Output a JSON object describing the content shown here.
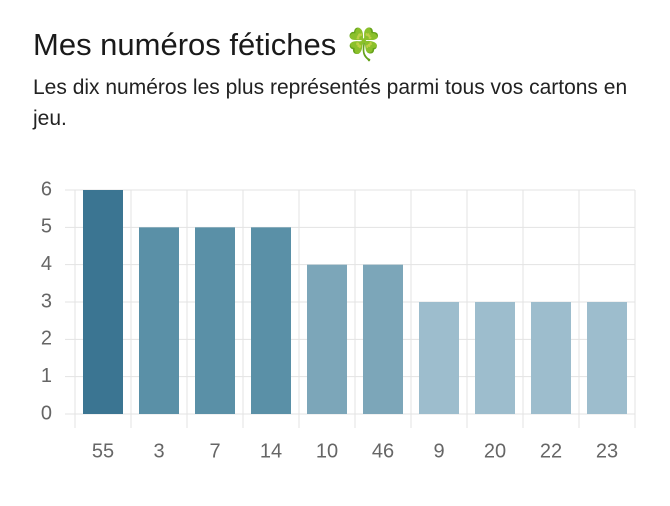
{
  "chart_data": {
    "type": "bar",
    "title": "Mes numéros fétiches 🍀",
    "subtitle": "Les dix numéros les plus représentés parmi tous vos cartons en jeu.",
    "categories": [
      "55",
      "3",
      "7",
      "14",
      "10",
      "46",
      "9",
      "20",
      "22",
      "23"
    ],
    "values": [
      6,
      5,
      5,
      5,
      4,
      4,
      3,
      3,
      3,
      3
    ],
    "colors": [
      "#3b7592",
      "#5a90a7",
      "#5a90a7",
      "#5a90a7",
      "#7ca6b9",
      "#7ca6b9",
      "#9dbdcd",
      "#9dbdcd",
      "#9dbdcd",
      "#9dbdcd"
    ],
    "ylim": [
      0,
      6
    ],
    "yticks": [
      0,
      1,
      2,
      3,
      4,
      5,
      6
    ],
    "grid": true
  }
}
